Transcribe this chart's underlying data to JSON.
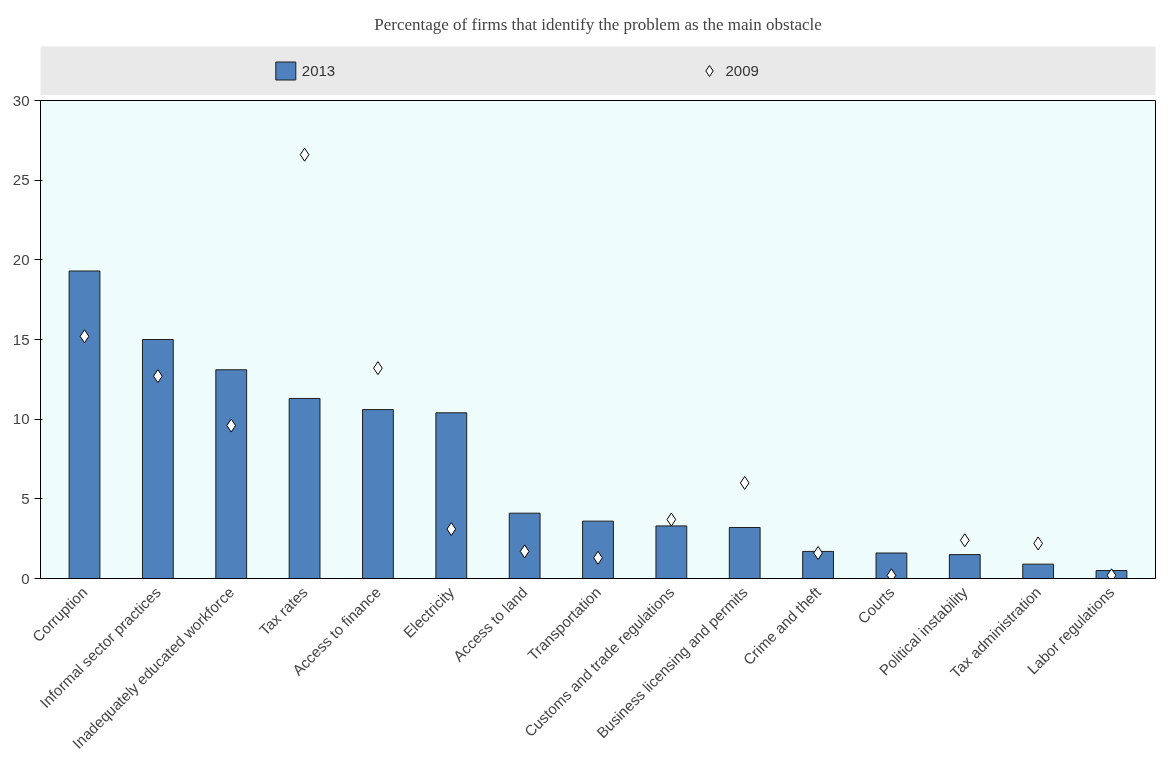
{
  "chart_data": {
    "type": "bar",
    "title": "Percentage of firms that identify the problem as the main obstacle",
    "categories": [
      "Corruption",
      "Informal sector practices",
      "Inadequately educated workforce",
      "Tax rates",
      "Access to finance",
      "Electricity",
      "Access to land",
      "Transportation",
      "Customs and trade regulations",
      "Business licensing and permits",
      "Crime and theft",
      "Courts",
      "Political instability",
      "Tax administration",
      "Labor regulations"
    ],
    "series": [
      {
        "name": "2013",
        "color": "#4f81bd",
        "values": [
          19.3,
          15.0,
          13.1,
          11.3,
          10.6,
          10.4,
          4.1,
          3.6,
          3.3,
          3.2,
          1.7,
          1.6,
          1.5,
          0.9,
          0.5
        ]
      },
      {
        "name": "2009",
        "type": "scatter",
        "color": "#ffffff",
        "values": [
          15.2,
          12.7,
          9.6,
          26.6,
          13.2,
          3.1,
          1.7,
          1.3,
          3.7,
          6.0,
          1.6,
          0.2,
          2.4,
          2.2,
          0.2
        ]
      }
    ],
    "ylim": [
      0,
      30
    ],
    "yticks": [
      0,
      5,
      10,
      15,
      20,
      25,
      30
    ],
    "grid": false,
    "legend": "top",
    "marker": "diamond"
  }
}
